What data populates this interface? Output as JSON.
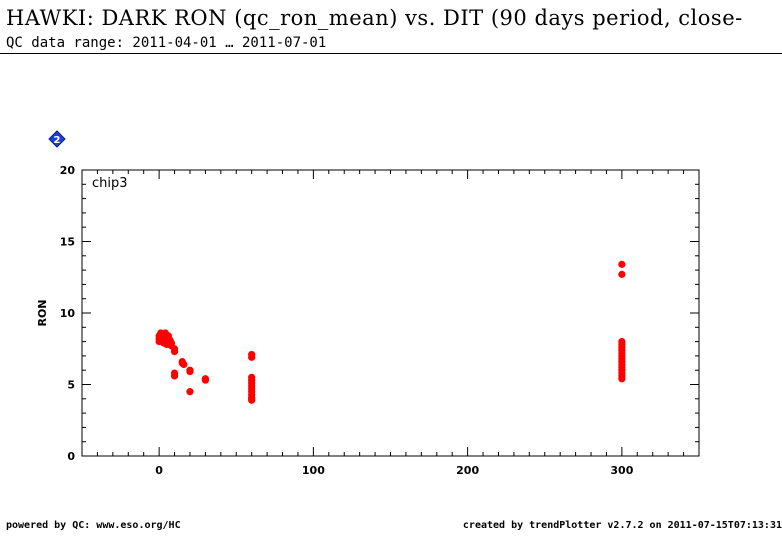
{
  "header": {
    "title": "HAWKI: DARK RON (qc_ron_mean) vs. DIT (90 days period, close-",
    "subtitle": "QC data range: 2011-04-01 … 2011-07-01"
  },
  "footer": {
    "left": "powered by QC: www.eso.org/HC",
    "right": "created by trendPlotter v2.7.2 on 2011-07-15T07:13:31"
  },
  "badge": {
    "icon": "blue-diamond-2-icon",
    "label": "2",
    "color": "#1f3fd6"
  },
  "chart_data": {
    "type": "scatter",
    "panel_label": "chip3",
    "xlabel": "",
    "ylabel": "RON",
    "xlim": [
      -50,
      350
    ],
    "ylim": [
      0,
      20
    ],
    "xticks": [
      0,
      100,
      200,
      300
    ],
    "yticks": [
      0,
      5,
      10,
      15,
      20
    ],
    "grid": false,
    "marker_color": "#ff0000",
    "series": [
      {
        "points": [
          [
            0,
            8.0
          ],
          [
            0,
            8.2
          ],
          [
            0,
            8.4
          ],
          [
            1,
            8.6
          ],
          [
            1,
            8.1
          ],
          [
            2,
            8.5
          ],
          [
            3,
            8.3
          ],
          [
            3,
            7.9
          ],
          [
            4,
            8.6
          ],
          [
            5,
            8.2
          ],
          [
            5,
            7.8
          ],
          [
            6,
            8.4
          ],
          [
            6,
            8.0
          ],
          [
            7,
            8.1
          ],
          [
            8,
            7.9
          ],
          [
            8,
            7.7
          ],
          [
            10,
            7.5
          ],
          [
            10,
            7.3
          ],
          [
            10,
            5.8
          ],
          [
            10,
            5.6
          ],
          [
            15,
            6.6
          ],
          [
            15,
            6.5
          ],
          [
            16,
            6.4
          ],
          [
            20,
            6.0
          ],
          [
            20,
            5.9
          ],
          [
            20,
            4.5
          ],
          [
            30,
            5.4
          ],
          [
            30,
            5.3
          ],
          [
            60,
            7.1
          ],
          [
            60,
            6.9
          ],
          [
            60,
            5.5
          ],
          [
            60,
            5.3
          ],
          [
            60,
            5.1
          ],
          [
            60,
            4.9
          ],
          [
            60,
            4.7
          ],
          [
            60,
            4.5
          ],
          [
            60,
            4.3
          ],
          [
            60,
            4.1
          ],
          [
            60,
            4.0
          ],
          [
            60,
            3.9
          ],
          [
            300,
            13.4
          ],
          [
            300,
            12.7
          ],
          [
            300,
            8.0
          ],
          [
            300,
            7.8
          ],
          [
            300,
            7.6
          ],
          [
            300,
            7.4
          ],
          [
            300,
            7.2
          ],
          [
            300,
            7.0
          ],
          [
            300,
            6.8
          ],
          [
            300,
            6.6
          ],
          [
            300,
            6.4
          ],
          [
            300,
            6.2
          ],
          [
            300,
            6.0
          ],
          [
            300,
            5.8
          ],
          [
            300,
            5.6
          ],
          [
            300,
            5.4
          ]
        ]
      }
    ]
  }
}
